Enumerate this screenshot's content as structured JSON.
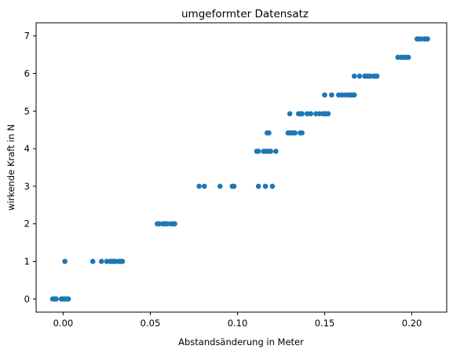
{
  "chart_data": {
    "type": "scatter",
    "title": "umgeformter Datensatz",
    "xlabel": "Abstandsänderung in Meter",
    "ylabel": "wirkende Kraft in N",
    "xlim": [
      -0.0155,
      0.22
    ],
    "ylim": [
      -0.35,
      7.35
    ],
    "xticks": [
      0.0,
      0.05,
      0.1,
      0.15,
      0.2
    ],
    "xtick_labels": [
      "0.00",
      "0.05",
      "0.10",
      "0.15",
      "0.20"
    ],
    "yticks": [
      0,
      1,
      2,
      3,
      4,
      5,
      6,
      7
    ],
    "ytick_labels": [
      "0",
      "1",
      "2",
      "3",
      "4",
      "5",
      "6",
      "7"
    ],
    "grid": false,
    "color": "#1f77b4",
    "points": [
      [
        -0.006,
        0
      ],
      [
        -0.005,
        0
      ],
      [
        -0.004,
        0
      ],
      [
        -0.001,
        0
      ],
      [
        0.0,
        0
      ],
      [
        0.001,
        0
      ],
      [
        0.002,
        0
      ],
      [
        0.003,
        0
      ],
      [
        0.001,
        1
      ],
      [
        0.017,
        1
      ],
      [
        0.022,
        1
      ],
      [
        0.025,
        1
      ],
      [
        0.027,
        1
      ],
      [
        0.028,
        1
      ],
      [
        0.029,
        1
      ],
      [
        0.03,
        1
      ],
      [
        0.032,
        1
      ],
      [
        0.033,
        1
      ],
      [
        0.034,
        1
      ],
      [
        0.054,
        2
      ],
      [
        0.055,
        2
      ],
      [
        0.057,
        2
      ],
      [
        0.058,
        2
      ],
      [
        0.059,
        2
      ],
      [
        0.06,
        2
      ],
      [
        0.062,
        2
      ],
      [
        0.063,
        2
      ],
      [
        0.064,
        2
      ],
      [
        0.078,
        3
      ],
      [
        0.081,
        3
      ],
      [
        0.09,
        3
      ],
      [
        0.097,
        3
      ],
      [
        0.098,
        3
      ],
      [
        0.112,
        3
      ],
      [
        0.116,
        3
      ],
      [
        0.12,
        3
      ],
      [
        0.111,
        3.93
      ],
      [
        0.112,
        3.93
      ],
      [
        0.115,
        3.93
      ],
      [
        0.116,
        3.93
      ],
      [
        0.117,
        3.93
      ],
      [
        0.118,
        3.93
      ],
      [
        0.119,
        3.93
      ],
      [
        0.122,
        3.93
      ],
      [
        0.117,
        4.42
      ],
      [
        0.118,
        4.42
      ],
      [
        0.129,
        4.42
      ],
      [
        0.13,
        4.42
      ],
      [
        0.131,
        4.42
      ],
      [
        0.132,
        4.42
      ],
      [
        0.133,
        4.42
      ],
      [
        0.136,
        4.42
      ],
      [
        0.137,
        4.42
      ],
      [
        0.13,
        4.93
      ],
      [
        0.135,
        4.93
      ],
      [
        0.136,
        4.93
      ],
      [
        0.137,
        4.93
      ],
      [
        0.14,
        4.93
      ],
      [
        0.142,
        4.93
      ],
      [
        0.145,
        4.93
      ],
      [
        0.147,
        4.93
      ],
      [
        0.149,
        4.93
      ],
      [
        0.15,
        4.93
      ],
      [
        0.151,
        4.93
      ],
      [
        0.152,
        4.93
      ],
      [
        0.15,
        5.43
      ],
      [
        0.154,
        5.43
      ],
      [
        0.158,
        5.43
      ],
      [
        0.16,
        5.43
      ],
      [
        0.162,
        5.43
      ],
      [
        0.164,
        5.43
      ],
      [
        0.165,
        5.43
      ],
      [
        0.166,
        5.43
      ],
      [
        0.167,
        5.43
      ],
      [
        0.167,
        5.93
      ],
      [
        0.17,
        5.93
      ],
      [
        0.173,
        5.93
      ],
      [
        0.174,
        5.93
      ],
      [
        0.175,
        5.93
      ],
      [
        0.176,
        5.93
      ],
      [
        0.178,
        5.93
      ],
      [
        0.179,
        5.93
      ],
      [
        0.18,
        5.93
      ],
      [
        0.192,
        6.43
      ],
      [
        0.194,
        6.43
      ],
      [
        0.195,
        6.43
      ],
      [
        0.196,
        6.43
      ],
      [
        0.197,
        6.43
      ],
      [
        0.198,
        6.43
      ],
      [
        0.203,
        6.92
      ],
      [
        0.204,
        6.92
      ],
      [
        0.205,
        6.92
      ],
      [
        0.207,
        6.92
      ],
      [
        0.208,
        6.92
      ],
      [
        0.209,
        6.92
      ]
    ]
  }
}
